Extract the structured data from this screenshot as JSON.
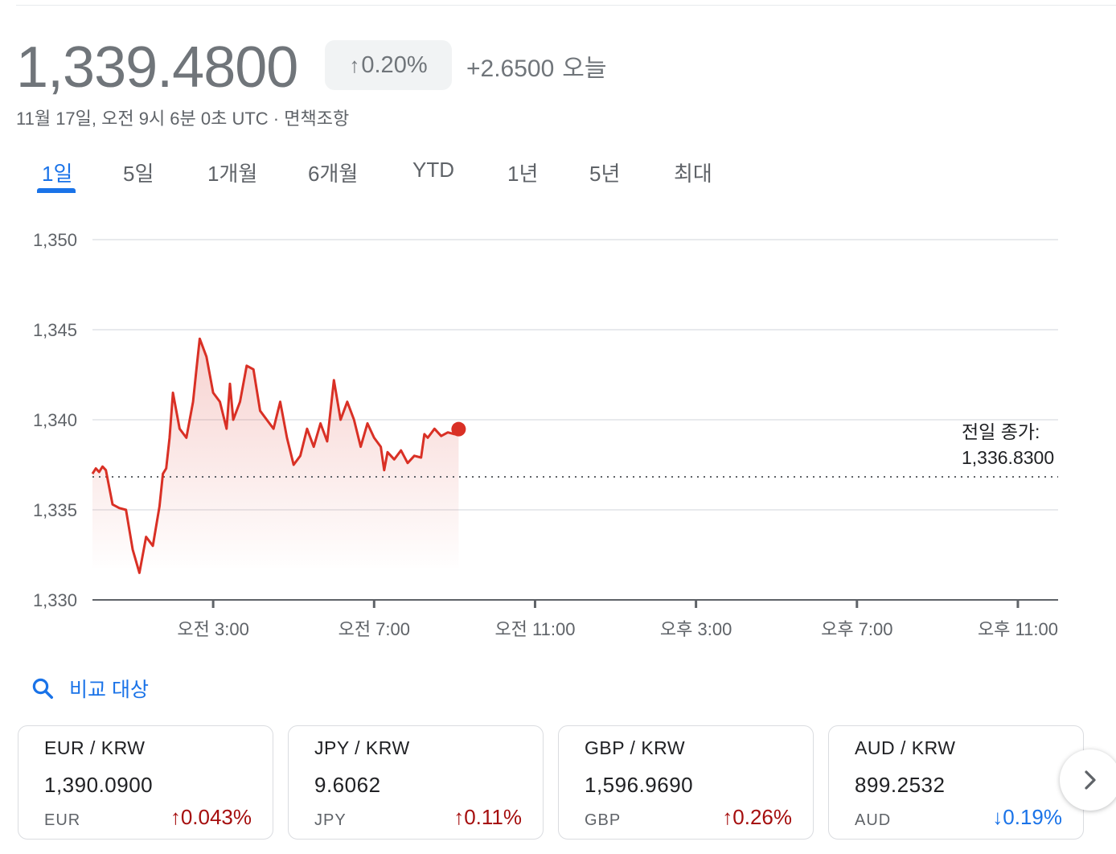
{
  "header": {
    "price": "1,339.4800",
    "change_pct": "0.20%",
    "change_abs": "+2.6500",
    "change_period": "오늘",
    "timestamp": "11월 17일, 오전 9시 6분 0초 UTC · 면책조항"
  },
  "tabs": [
    {
      "label": "1일",
      "active": true
    },
    {
      "label": "5일"
    },
    {
      "label": "1개월"
    },
    {
      "label": "6개월"
    },
    {
      "label": "YTD"
    },
    {
      "label": "1년"
    },
    {
      "label": "5년"
    },
    {
      "label": "최대"
    }
  ],
  "chart_data": {
    "type": "line",
    "series": [
      {
        "x": [
          "00:00",
          "00:05",
          "00:10",
          "00:15",
          "00:20",
          "00:30",
          "00:40",
          "00:50",
          "01:00",
          "01:10",
          "01:20",
          "01:30",
          "01:40",
          "01:45",
          "01:50",
          "01:55",
          "02:00",
          "02:10",
          "02:20",
          "02:30",
          "02:35",
          "02:40",
          "02:50",
          "03:00",
          "03:10",
          "03:20",
          "03:25",
          "03:30",
          "03:40",
          "03:50",
          "04:00",
          "04:10",
          "04:20",
          "04:30",
          "04:40",
          "04:50",
          "05:00",
          "05:10",
          "05:20",
          "05:30",
          "05:40",
          "05:50",
          "06:00",
          "06:10",
          "06:20",
          "06:30",
          "06:40",
          "06:50",
          "07:00",
          "07:10",
          "07:15",
          "07:20",
          "07:30",
          "07:40",
          "07:50",
          "08:00",
          "08:10",
          "08:15",
          "08:20",
          "08:30",
          "08:40",
          "08:50",
          "09:00",
          "09:06"
        ],
        "y": [
          1337.0,
          1337.3,
          1337.1,
          1337.4,
          1337.2,
          1335.3,
          1335.1,
          1335.0,
          1332.8,
          1331.5,
          1333.5,
          1333.0,
          1335.2,
          1337.0,
          1337.3,
          1339.0,
          1341.5,
          1339.5,
          1339.0,
          1341.0,
          1342.8,
          1344.5,
          1343.5,
          1341.5,
          1341.0,
          1339.5,
          1342.0,
          1340.0,
          1341.0,
          1343.0,
          1342.8,
          1340.5,
          1340.0,
          1339.5,
          1341.0,
          1339.0,
          1337.5,
          1338.0,
          1339.5,
          1338.5,
          1339.8,
          1338.8,
          1342.2,
          1340.0,
          1341.0,
          1340.0,
          1338.5,
          1339.8,
          1339.0,
          1338.5,
          1337.2,
          1338.2,
          1337.8,
          1338.3,
          1337.6,
          1338.0,
          1337.9,
          1339.2,
          1339.0,
          1339.5,
          1339.1,
          1339.3,
          1339.2,
          1339.48
        ]
      }
    ],
    "previous_close": 1336.83,
    "previous_close_label": "전일 종가:",
    "previous_close_value": "1,336.8300",
    "y_ticks": [
      "1,350",
      "1,345",
      "1,340",
      "1,335",
      "1,330"
    ],
    "ylim": [
      1330,
      1350
    ],
    "x_ticks": [
      "오전 3:00",
      "오전 7:00",
      "오전 11:00",
      "오후 3:00",
      "오후 7:00",
      "오후 11:00"
    ],
    "xlim_hours": [
      0,
      24
    ],
    "color": "#d93025",
    "grid": true
  },
  "compare": {
    "label": "비교 대상"
  },
  "cards": [
    {
      "pair": "EUR / KRW",
      "value": "1,390.0900",
      "currency": "EUR",
      "change": "0.043%",
      "dir": "up"
    },
    {
      "pair": "JPY / KRW",
      "value": "9.6062",
      "currency": "JPY",
      "change": "0.11%",
      "dir": "up"
    },
    {
      "pair": "GBP / KRW",
      "value": "1,596.9690",
      "currency": "GBP",
      "change": "0.26%",
      "dir": "up"
    },
    {
      "pair": "AUD / KRW",
      "value": "899.2532",
      "currency": "AUD",
      "change": "0.19%",
      "dir": "down"
    }
  ],
  "colors": {
    "accent": "#1a73e8",
    "up": "#a50e0e",
    "down": "#1a73e8",
    "line": "#d93025"
  },
  "icons": {
    "up": "arrow-up-icon",
    "down": "arrow-down-icon",
    "search": "search-icon",
    "next": "chevron-right-icon"
  }
}
